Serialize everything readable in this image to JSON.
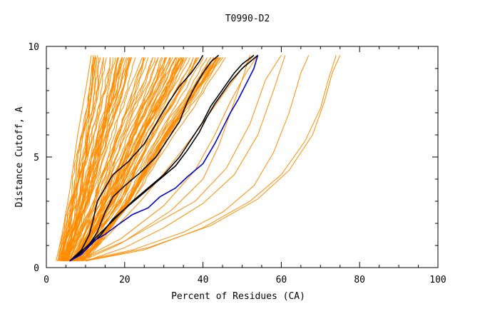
{
  "chart_data": {
    "type": "line",
    "title": "T0990-D2",
    "xlabel": "Percent of Residues (CA)",
    "ylabel": "Distance Cutoff, A",
    "xlim": [
      0,
      100
    ],
    "ylim": [
      0,
      10
    ],
    "x_ticks": [
      0,
      20,
      40,
      60,
      80,
      100
    ],
    "y_ticks": [
      0,
      5,
      10
    ],
    "grid": false,
    "colors": {
      "background_series": "#ff8c00",
      "highlight_dark": "#000000",
      "highlight_blue": "#0000cc",
      "axis": "#000000"
    },
    "background_series_band": {
      "left_edge": [
        [
          3.0,
          0.3
        ],
        [
          6.0,
          3.0
        ],
        [
          9.0,
          6.0
        ],
        [
          11.0,
          8.0
        ],
        [
          12.0,
          9.6
        ]
      ],
      "right_edge": [
        [
          10.0,
          0.3
        ],
        [
          22.0,
          3.0
        ],
        [
          32.0,
          6.0
        ],
        [
          40.0,
          8.0
        ],
        [
          46.0,
          9.6
        ]
      ],
      "count": 90
    },
    "background_outliers": [
      {
        "points": [
          [
            2.5,
            0.3
          ],
          [
            4,
            1.5
          ],
          [
            6,
            3.5
          ],
          [
            8,
            6
          ],
          [
            10,
            8
          ],
          [
            11.5,
            9.6
          ]
        ]
      },
      {
        "points": [
          [
            3,
            0.3
          ],
          [
            5,
            1.2
          ],
          [
            7,
            3
          ],
          [
            9,
            5.5
          ],
          [
            11,
            8
          ],
          [
            12,
            9.6
          ]
        ]
      },
      {
        "points": [
          [
            4,
            0.3
          ],
          [
            6,
            1
          ],
          [
            8,
            2.5
          ],
          [
            10,
            5
          ],
          [
            12,
            7.5
          ],
          [
            13,
            9.6
          ]
        ]
      },
      {
        "points": [
          [
            5,
            0.3
          ],
          [
            8,
            2
          ],
          [
            10,
            5
          ],
          [
            11.5,
            8
          ],
          [
            12.5,
            9.6
          ]
        ]
      },
      {
        "points": [
          [
            9,
            0.3
          ],
          [
            18,
            1
          ],
          [
            28,
            2
          ],
          [
            38,
            3
          ],
          [
            46,
            4.5
          ],
          [
            52,
            6.5
          ],
          [
            56,
            8.5
          ],
          [
            60,
            9.6
          ]
        ]
      },
      {
        "points": [
          [
            10,
            0.3
          ],
          [
            20,
            0.9
          ],
          [
            30,
            1.8
          ],
          [
            40,
            2.9
          ],
          [
            48,
            4.2
          ],
          [
            54,
            6
          ],
          [
            58,
            8
          ],
          [
            61,
            9.6
          ]
        ]
      },
      {
        "points": [
          [
            9,
            0.3
          ],
          [
            22,
            0.8
          ],
          [
            35,
            1.6
          ],
          [
            45,
            2.5
          ],
          [
            53,
            3.7
          ],
          [
            58,
            5.2
          ],
          [
            62,
            7
          ],
          [
            65,
            8.8
          ],
          [
            67,
            9.6
          ]
        ]
      },
      {
        "points": [
          [
            10,
            0.3
          ],
          [
            25,
            0.8
          ],
          [
            40,
            1.8
          ],
          [
            52,
            3
          ],
          [
            60,
            4.2
          ],
          [
            66,
            5.7
          ],
          [
            70,
            7.2
          ],
          [
            72,
            8.5
          ],
          [
            74,
            9.6
          ]
        ]
      },
      {
        "points": [
          [
            10,
            0.3
          ],
          [
            26,
            0.9
          ],
          [
            42,
            1.9
          ],
          [
            54,
            3.1
          ],
          [
            62,
            4.4
          ],
          [
            68,
            6
          ],
          [
            71,
            7.5
          ],
          [
            73,
            8.8
          ],
          [
            75,
            9.6
          ]
        ]
      },
      {
        "points": [
          [
            8,
            0.3
          ],
          [
            20,
            1.2
          ],
          [
            32,
            2.6
          ],
          [
            40,
            4
          ],
          [
            44,
            5.5
          ],
          [
            47,
            7
          ],
          [
            50,
            8.5
          ],
          [
            52,
            9.6
          ]
        ]
      },
      {
        "points": [
          [
            8,
            0.3
          ],
          [
            19,
            1.3
          ],
          [
            30,
            2.8
          ],
          [
            38,
            4.4
          ],
          [
            43,
            6
          ],
          [
            47,
            7.5
          ],
          [
            51,
            8.8
          ],
          [
            54,
            9.6
          ]
        ]
      },
      {
        "points": [
          [
            9,
            0.3
          ],
          [
            16,
            1.5
          ],
          [
            24,
            3
          ],
          [
            32,
            4.7
          ],
          [
            39,
            6.3
          ],
          [
            45,
            7.8
          ],
          [
            50,
            9
          ],
          [
            53,
            9.6
          ]
        ]
      }
    ],
    "series": [
      {
        "color": "#000000",
        "points": [
          [
            6,
            0.3
          ],
          [
            9,
            0.8
          ],
          [
            11,
            1.5
          ],
          [
            12,
            2.2
          ],
          [
            13,
            3
          ],
          [
            15,
            3.6
          ],
          [
            17,
            4.2
          ],
          [
            21,
            4.8
          ],
          [
            25,
            5.6
          ],
          [
            28,
            6.5
          ],
          [
            31,
            7.4
          ],
          [
            34,
            8.2
          ],
          [
            37,
            8.8
          ],
          [
            39,
            9.3
          ],
          [
            40,
            9.6
          ]
        ]
      },
      {
        "color": "#000000",
        "points": [
          [
            6,
            0.3
          ],
          [
            10,
            0.8
          ],
          [
            13,
            1.6
          ],
          [
            15,
            2.5
          ],
          [
            17,
            3.2
          ],
          [
            20,
            3.7
          ],
          [
            24,
            4.3
          ],
          [
            28,
            5
          ],
          [
            31,
            5.8
          ],
          [
            34,
            6.6
          ],
          [
            36,
            7.5
          ],
          [
            38,
            8.2
          ],
          [
            40,
            8.8
          ],
          [
            42,
            9.3
          ],
          [
            44,
            9.6
          ]
        ]
      },
      {
        "color": "#000000",
        "points": [
          [
            6,
            0.3
          ],
          [
            10,
            0.9
          ],
          [
            14,
            1.6
          ],
          [
            18,
            2.3
          ],
          [
            22,
            3
          ],
          [
            26,
            3.6
          ],
          [
            30,
            4.2
          ],
          [
            34,
            5
          ],
          [
            37,
            5.8
          ],
          [
            40,
            6.6
          ],
          [
            42,
            7.3
          ],
          [
            44,
            7.8
          ],
          [
            46,
            8.3
          ],
          [
            48,
            8.8
          ],
          [
            50,
            9.2
          ],
          [
            53,
            9.6
          ]
        ]
      },
      {
        "color": "#000000",
        "points": [
          [
            6,
            0.3
          ],
          [
            10,
            0.8
          ],
          [
            14,
            1.5
          ],
          [
            17,
            2.2
          ],
          [
            21,
            2.8
          ],
          [
            25,
            3.4
          ],
          [
            29,
            4
          ],
          [
            33,
            4.6
          ],
          [
            36,
            5.3
          ],
          [
            39,
            6.1
          ],
          [
            41,
            6.8
          ],
          [
            43,
            7.4
          ],
          [
            45,
            7.9
          ],
          [
            47,
            8.4
          ],
          [
            50,
            9
          ],
          [
            54,
            9.6
          ]
        ]
      },
      {
        "color": "#0000cc",
        "points": [
          [
            6,
            0.3
          ],
          [
            9,
            0.6
          ],
          [
            12,
            1.2
          ],
          [
            15,
            1.5
          ],
          [
            18,
            1.9
          ],
          [
            22,
            2.4
          ],
          [
            26,
            2.7
          ],
          [
            29,
            3.2
          ],
          [
            33,
            3.6
          ],
          [
            36,
            4.1
          ],
          [
            40,
            4.7
          ],
          [
            43,
            5.6
          ],
          [
            45,
            6.3
          ],
          [
            47,
            7
          ],
          [
            49,
            7.6
          ],
          [
            51,
            8.3
          ],
          [
            53,
            9
          ],
          [
            54,
            9.6
          ]
        ]
      }
    ]
  }
}
